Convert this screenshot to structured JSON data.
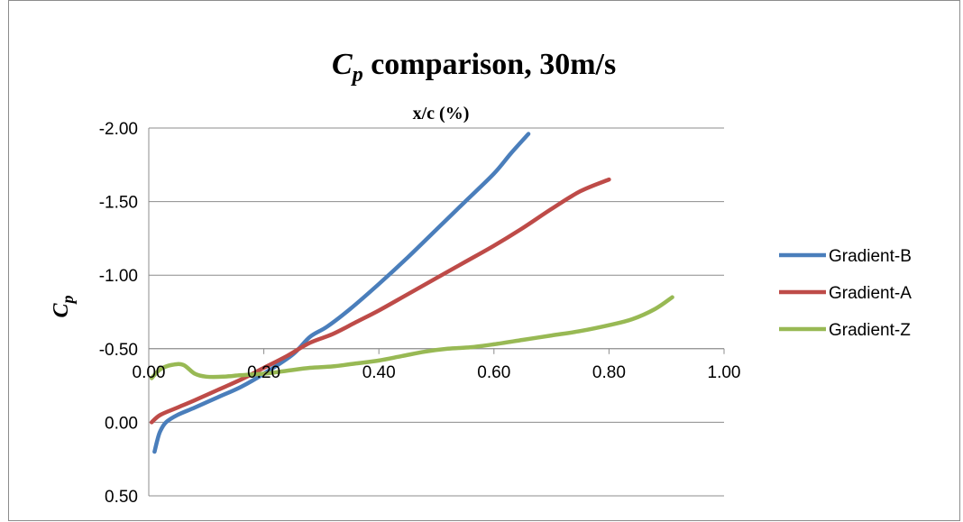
{
  "chart_data": {
    "type": "line",
    "title": {
      "symbol": "C",
      "subscript": "p",
      "rest": " comparison, 30m/s"
    },
    "xlabel": "x/c (%)",
    "ylabel": {
      "symbol": "C",
      "subscript": "p"
    },
    "xlim": [
      0,
      1
    ],
    "ylim": [
      0.5,
      -2.0
    ],
    "y_reversed": true,
    "x_ticks": [
      "0.00",
      "0.20",
      "0.40",
      "0.60",
      "0.80",
      "1.00"
    ],
    "y_ticks": [
      "-2.00",
      "-1.50",
      "-1.00",
      "-0.50",
      "0.00",
      "0.50"
    ],
    "x_tick_values": [
      0,
      0.2,
      0.4,
      0.6,
      0.8,
      1.0
    ],
    "y_tick_values": [
      -2.0,
      -1.5,
      -1.0,
      -0.5,
      0.0,
      0.5
    ],
    "x_axis_crosses_at": -0.5,
    "grid": "horizontal",
    "legend_position": "right",
    "series": [
      {
        "name": "Gradient-B",
        "color": "#4a7ebb",
        "x": [
          0.01,
          0.015,
          0.02,
          0.03,
          0.05,
          0.08,
          0.12,
          0.16,
          0.2,
          0.25,
          0.28,
          0.31,
          0.35,
          0.4,
          0.45,
          0.5,
          0.55,
          0.6,
          0.63,
          0.66
        ],
        "y": [
          0.2,
          0.12,
          0.06,
          0.0,
          -0.05,
          -0.1,
          -0.17,
          -0.24,
          -0.33,
          -0.46,
          -0.58,
          -0.65,
          -0.77,
          -0.94,
          -1.12,
          -1.31,
          -1.5,
          -1.69,
          -1.83,
          -1.96
        ]
      },
      {
        "name": "Gradient-A",
        "color": "#be4b48",
        "x": [
          0.005,
          0.02,
          0.05,
          0.08,
          0.12,
          0.16,
          0.2,
          0.24,
          0.28,
          0.32,
          0.36,
          0.4,
          0.45,
          0.5,
          0.55,
          0.6,
          0.65,
          0.7,
          0.75,
          0.8
        ],
        "y": [
          0.0,
          -0.05,
          -0.1,
          -0.15,
          -0.22,
          -0.29,
          -0.37,
          -0.45,
          -0.54,
          -0.6,
          -0.68,
          -0.76,
          -0.87,
          -0.98,
          -1.09,
          -1.2,
          -1.32,
          -1.45,
          -1.57,
          -1.65
        ]
      },
      {
        "name": "Gradient-Z",
        "color": "#98b954",
        "x": [
          0.005,
          0.02,
          0.04,
          0.06,
          0.08,
          0.1,
          0.13,
          0.16,
          0.2,
          0.24,
          0.28,
          0.32,
          0.36,
          0.4,
          0.44,
          0.48,
          0.52,
          0.56,
          0.6,
          0.65,
          0.7,
          0.75,
          0.8,
          0.84,
          0.88,
          0.91
        ],
        "y": [
          -0.3,
          -0.36,
          -0.39,
          -0.39,
          -0.33,
          -0.31,
          -0.31,
          -0.32,
          -0.33,
          -0.35,
          -0.37,
          -0.38,
          -0.4,
          -0.42,
          -0.45,
          -0.48,
          -0.5,
          -0.51,
          -0.53,
          -0.56,
          -0.59,
          -0.62,
          -0.66,
          -0.7,
          -0.77,
          -0.85
        ]
      }
    ]
  }
}
